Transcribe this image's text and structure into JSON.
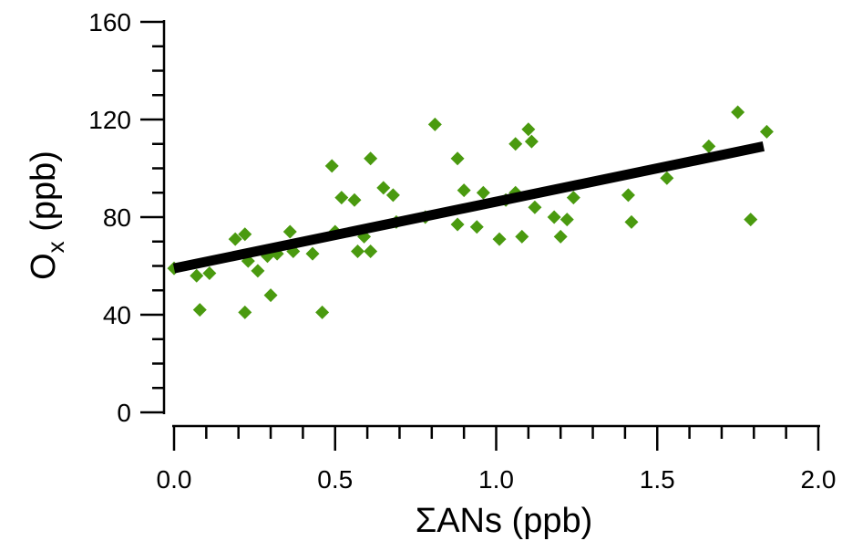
{
  "chart_data": {
    "type": "scatter",
    "xlabel": "ΣANs (ppb)",
    "ylabel_main": "O",
    "ylabel_sub": "x",
    "ylabel_unit": " (ppb)",
    "xlim": [
      0,
      2.0
    ],
    "ylim": [
      0,
      160
    ],
    "x_ticks": [
      0.0,
      0.5,
      1.0,
      1.5,
      2.0
    ],
    "x_tick_labels": [
      "0.0",
      "0.5",
      "1.0",
      "1.5",
      "2.0"
    ],
    "y_ticks": [
      0,
      40,
      80,
      120,
      160
    ],
    "y_tick_labels": [
      "0",
      "40",
      "80",
      "120",
      "160"
    ],
    "marker_color": "#4a9a0f",
    "marker_shape": "diamond",
    "fit_line": {
      "x": [
        0.0,
        1.83
      ],
      "y": [
        59,
        109
      ],
      "color": "#000000"
    },
    "points": [
      {
        "x": 0.0,
        "y": 59
      },
      {
        "x": 0.07,
        "y": 56
      },
      {
        "x": 0.08,
        "y": 42
      },
      {
        "x": 0.11,
        "y": 57
      },
      {
        "x": 0.19,
        "y": 71
      },
      {
        "x": 0.22,
        "y": 73
      },
      {
        "x": 0.22,
        "y": 41
      },
      {
        "x": 0.23,
        "y": 62
      },
      {
        "x": 0.26,
        "y": 58
      },
      {
        "x": 0.29,
        "y": 64
      },
      {
        "x": 0.3,
        "y": 48
      },
      {
        "x": 0.32,
        "y": 65
      },
      {
        "x": 0.36,
        "y": 74
      },
      {
        "x": 0.37,
        "y": 66
      },
      {
        "x": 0.43,
        "y": 65
      },
      {
        "x": 0.46,
        "y": 41
      },
      {
        "x": 0.49,
        "y": 101
      },
      {
        "x": 0.5,
        "y": 74
      },
      {
        "x": 0.52,
        "y": 88
      },
      {
        "x": 0.56,
        "y": 87
      },
      {
        "x": 0.57,
        "y": 66
      },
      {
        "x": 0.59,
        "y": 72
      },
      {
        "x": 0.61,
        "y": 66
      },
      {
        "x": 0.61,
        "y": 104
      },
      {
        "x": 0.65,
        "y": 92
      },
      {
        "x": 0.68,
        "y": 89
      },
      {
        "x": 0.69,
        "y": 78
      },
      {
        "x": 0.78,
        "y": 80
      },
      {
        "x": 0.81,
        "y": 118
      },
      {
        "x": 0.88,
        "y": 104
      },
      {
        "x": 0.88,
        "y": 77
      },
      {
        "x": 0.9,
        "y": 91
      },
      {
        "x": 0.94,
        "y": 76
      },
      {
        "x": 0.96,
        "y": 90
      },
      {
        "x": 1.01,
        "y": 71
      },
      {
        "x": 1.03,
        "y": 87
      },
      {
        "x": 1.06,
        "y": 110
      },
      {
        "x": 1.06,
        "y": 90
      },
      {
        "x": 1.08,
        "y": 72
      },
      {
        "x": 1.1,
        "y": 116
      },
      {
        "x": 1.11,
        "y": 111
      },
      {
        "x": 1.12,
        "y": 84
      },
      {
        "x": 1.18,
        "y": 80
      },
      {
        "x": 1.2,
        "y": 72
      },
      {
        "x": 1.22,
        "y": 79
      },
      {
        "x": 1.24,
        "y": 88
      },
      {
        "x": 1.41,
        "y": 89
      },
      {
        "x": 1.42,
        "y": 78
      },
      {
        "x": 1.53,
        "y": 96
      },
      {
        "x": 1.66,
        "y": 109
      },
      {
        "x": 1.75,
        "y": 123
      },
      {
        "x": 1.79,
        "y": 79
      },
      {
        "x": 1.84,
        "y": 115
      }
    ]
  }
}
